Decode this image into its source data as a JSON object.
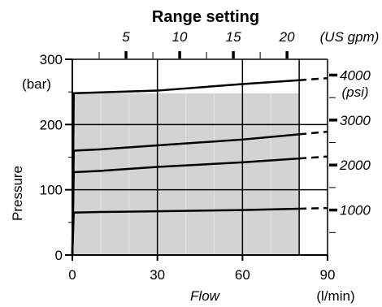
{
  "chart_data": {
    "type": "area",
    "title": "Range setting",
    "xlabel": "Flow",
    "x_unit": "(l/min)",
    "ylabel": "Pressure",
    "y_unit": "(bar)",
    "xlim": [
      0,
      90
    ],
    "ylim": [
      0,
      300
    ],
    "x_ticks": [
      "0",
      "30",
      "60",
      "90"
    ],
    "y_ticks": [
      "0",
      "100",
      "200",
      "300"
    ],
    "grid": true,
    "shaded_region": {
      "x_from": 0,
      "x_to": 80
    },
    "top_axis": {
      "unit": "(US gpm)",
      "ticks": [
        {
          "label": "5",
          "value": 5
        },
        {
          "label": "10",
          "value": 10
        },
        {
          "label": "15",
          "value": 15
        },
        {
          "label": "20",
          "value": 20
        }
      ],
      "minor_ticks": [
        2.5,
        7.5,
        12.5,
        17.5
      ]
    },
    "right_axis": {
      "unit": "(psi)",
      "ticks": [
        {
          "label": "1000",
          "value": 1000
        },
        {
          "label": "2000",
          "value": 2000
        },
        {
          "label": "3000",
          "value": 3000
        },
        {
          "label": "4000",
          "value": 4000
        }
      ],
      "minor_ticks": [
        500,
        1500,
        2500,
        3500
      ]
    },
    "series": [
      {
        "x": [
          0,
          0.5,
          10,
          30,
          60,
          80
        ],
        "y": [
          0,
          65,
          66,
          67,
          69,
          71
        ],
        "dash_to_x": 90
      },
      {
        "x": [
          0,
          0.5,
          10,
          30,
          60,
          80
        ],
        "y": [
          0,
          127,
          129,
          135,
          142,
          148
        ],
        "dash_to_x": 90
      },
      {
        "x": [
          0,
          0.5,
          10,
          30,
          60,
          80
        ],
        "y": [
          0,
          160,
          162,
          168,
          177,
          185
        ],
        "dash_to_x": 90
      },
      {
        "x": [
          0,
          0.5,
          30,
          60,
          80
        ],
        "y": [
          0,
          248,
          252,
          262,
          268
        ],
        "dash_to_x": 90
      }
    ]
  }
}
